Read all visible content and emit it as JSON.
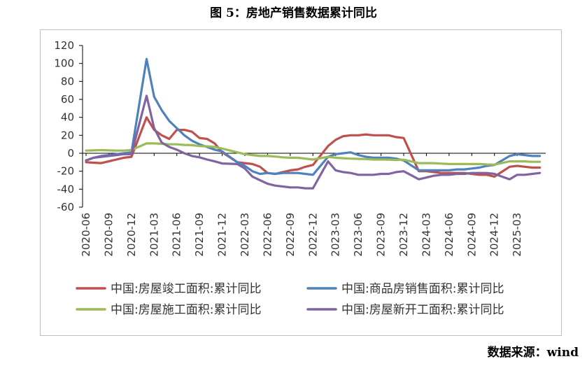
{
  "figure_title": "图 5：房地产销售数据累计同比",
  "source_note": "数据来源：wind",
  "chart_data": {
    "type": "line",
    "x": [
      "2020-06",
      "2020-07",
      "2020-08",
      "2020-09",
      "2020-10",
      "2020-11",
      "2020-12",
      "2021-02",
      "2021-03",
      "2021-04",
      "2021-05",
      "2021-06",
      "2021-07",
      "2021-08",
      "2021-09",
      "2021-10",
      "2021-11",
      "2021-12",
      "2022-02",
      "2022-03",
      "2022-04",
      "2022-05",
      "2022-06",
      "2022-07",
      "2022-08",
      "2022-09",
      "2022-10",
      "2022-11",
      "2022-12",
      "2023-02",
      "2023-03",
      "2023-04",
      "2023-05",
      "2023-06",
      "2023-07",
      "2023-08",
      "2023-09",
      "2023-10",
      "2023-11",
      "2023-12",
      "2024-02",
      "2024-03",
      "2024-04",
      "2024-05",
      "2024-06",
      "2024-07",
      "2024-08",
      "2024-09",
      "2024-10",
      "2024-11",
      "2024-12",
      "2025-02",
      "2025-03",
      "2025-04",
      "2025-05",
      "2025-06"
    ],
    "xtick_labels": [
      "2020-06",
      "2020-09",
      "2020-12",
      "2021-03",
      "2021-06",
      "2021-09",
      "2021-12",
      "2022-03",
      "2022-06",
      "2022-09",
      "2022-12",
      "2023-03",
      "2023-06",
      "2023-09",
      "2023-12",
      "2024-03",
      "2024-06",
      "2024-09",
      "2024-12",
      "2025-03"
    ],
    "ylim": [
      -60,
      120
    ],
    "yticks": [
      120,
      100,
      80,
      60,
      40,
      20,
      0,
      -20,
      -40,
      -60
    ],
    "legend_position": "bottom",
    "series": [
      {
        "name": "中国:房屋竣工面积:累计同比",
        "color": "#c0504d",
        "values": [
          -10,
          -10.5,
          -11,
          -9,
          -7,
          -5,
          -4,
          40,
          26,
          20,
          16,
          26,
          26,
          24,
          17,
          16,
          11,
          1,
          -10,
          -11,
          -12,
          -15,
          -22,
          -23,
          -21,
          -19,
          -18,
          -15,
          -13,
          8,
          15,
          19,
          20,
          20,
          21,
          20,
          20,
          20,
          18,
          17,
          -20,
          -20,
          -21,
          -22,
          -22,
          -22,
          -22,
          -23,
          -24,
          -24,
          -26,
          -15,
          -14,
          -15,
          -16,
          -16
        ]
      },
      {
        "name": "中国:商品房销售面积:累计同比",
        "color": "#4f81bd",
        "values": [
          -8,
          -5,
          -3,
          -2,
          -1,
          0,
          1,
          105,
          63,
          48,
          36,
          28,
          20,
          14,
          10,
          7,
          4,
          2,
          -10,
          -14,
          -20,
          -23,
          -22,
          -23,
          -22,
          -22,
          -22,
          -23,
          -24,
          -4,
          -1,
          0,
          1,
          -2,
          -4,
          -5,
          -5,
          -5,
          -6,
          -8,
          -19,
          -19,
          -19,
          -19,
          -19,
          -18,
          -18,
          -17,
          -16,
          -14,
          -13,
          -3,
          -1,
          -2,
          -3,
          -3
        ]
      },
      {
        "name": "中国:房屋施工面积:累计同比",
        "color": "#9bbb59",
        "values": [
          3,
          3.2,
          3.5,
          3.2,
          3,
          3,
          3.7,
          11,
          11,
          10.5,
          10,
          10,
          9.3,
          9,
          8,
          7.7,
          7,
          5.2,
          1,
          -1,
          -2,
          -3,
          -3,
          -3.7,
          -4.5,
          -5,
          -5,
          -6,
          -7,
          -4,
          -5,
          -5.5,
          -6,
          -6.2,
          -6.5,
          -7,
          -7,
          -7.1,
          -7.5,
          -7.2,
          -11,
          -11,
          -11,
          -11.5,
          -12,
          -12,
          -12,
          -12,
          -12,
          -12.5,
          -12.7,
          -9,
          -9,
          -9,
          -9.5,
          -9.5
        ]
      },
      {
        "name": "中国:房屋新开工面积:累计同比",
        "color": "#8064a2",
        "values": [
          -8,
          -5,
          -4,
          -3,
          -2,
          -1,
          -1,
          64,
          28,
          12,
          7,
          4,
          0,
          -3,
          -4.5,
          -7,
          -9,
          -11.4,
          -12,
          -17,
          -26,
          -30,
          -34,
          -36,
          -37,
          -38,
          -38,
          -39,
          -39,
          -9,
          -19,
          -21,
          -22,
          -24,
          -24,
          -24,
          -23,
          -23,
          -21,
          -20,
          -29,
          -27,
          -25,
          -24,
          -24,
          -23,
          -23,
          -22,
          -22,
          -22,
          -23,
          -29,
          -24,
          -24,
          -23,
          -22
        ]
      }
    ]
  }
}
